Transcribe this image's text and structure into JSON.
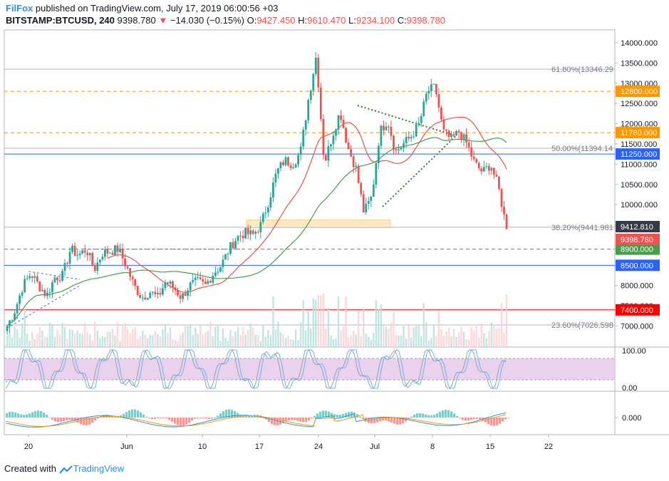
{
  "header": {
    "publisher": "FilFox",
    "published_text": "published on TradingView.com, July 17, 2019 06:00:56 +03",
    "symbol": "BITSTAMP:BTCUSD, 240",
    "last": "9398.780",
    "change": "−14.030 (−0.15%)",
    "o_label": "O:",
    "o": "9427.450",
    "h_label": "H:",
    "h": "9610.470",
    "l_label": "L:",
    "l": "9234.100",
    "c_label": "C:",
    "c": "9398.780"
  },
  "footer": {
    "created": "Created with",
    "brand": "TradingView"
  },
  "colors": {
    "up": "#26a69a",
    "down": "#ef5350",
    "accent": "#2196f3"
  },
  "chart_data": {
    "type": "candlestick",
    "symbol": "BITSTAMP:BTCUSD",
    "interval": "240",
    "ylim": [
      6700,
      14300
    ],
    "y_ticks": [
      "14000.000",
      "13500.000",
      "13000.000",
      "12500.000",
      "12000.000",
      "11500.000",
      "11000.000",
      "10500.000",
      "10000.000",
      "9500.000",
      "9000.000",
      "8500.000",
      "8000.000",
      "7500.000",
      "7000.000"
    ],
    "x_ticks": [
      "20",
      "Jun",
      "10",
      "17",
      "24",
      "Jul",
      "8",
      "15",
      "22"
    ],
    "close_path": [
      7000,
      7400,
      8000,
      8300,
      8000,
      7750,
      8200,
      8250,
      8900,
      8750,
      8900,
      8400,
      8800,
      8850,
      8900,
      8500,
      8000,
      7700,
      7850,
      7700,
      8100,
      7950,
      7700,
      8000,
      8100,
      8000,
      8300,
      8500,
      8900,
      9200,
      9300,
      9250,
      9500,
      10100,
      10800,
      11100,
      11000,
      11300,
      12600,
      13700,
      11000,
      11700,
      12300,
      11400,
      10900,
      9800,
      10200,
      11800,
      12100,
      11300,
      11500,
      11700,
      12000,
      12800,
      12900,
      11800,
      11600,
      11800,
      11500,
      11000,
      10800,
      11000,
      10400,
      9400
    ],
    "horizontal_levels": [
      {
        "value": 12800,
        "label": "12800.000",
        "bg": "#ff9800",
        "style": "dashed"
      },
      {
        "value": 11780,
        "label": "11780.000",
        "bg": "#ff9800",
        "style": "dashed"
      },
      {
        "value": 11250,
        "label": "11250.000",
        "bg": "#2962ff",
        "style": "solid"
      },
      {
        "value": 8900,
        "label": "8900.000",
        "bg": "#43a047",
        "style": "dashed"
      },
      {
        "value": 8500,
        "label": "8500.000",
        "bg": "#2962ff",
        "style": "solid"
      },
      {
        "value": 7400,
        "label": "7400.000",
        "bg": "#ff0000",
        "style": "solid"
      }
    ],
    "fibonacci": [
      {
        "label": "61.80%(13346.29",
        "value": 13346.29
      },
      {
        "label": "50.00%(11394.14",
        "value": 11394.14
      },
      {
        "label": "38.20%(9441.981",
        "value": 9441.981
      },
      {
        "label": "23.60%(7026.598",
        "value": 7026.598
      }
    ],
    "price_labels": [
      {
        "label": "9412.810",
        "value": 9412.81,
        "bg": "#363a45"
      },
      {
        "label": "9398.780",
        "value": 9398.78,
        "bg": "#ef5350"
      }
    ],
    "stoch": {
      "upper": "100.00",
      "lower": "0.00"
    },
    "macd": {
      "zero": "0.000"
    }
  }
}
